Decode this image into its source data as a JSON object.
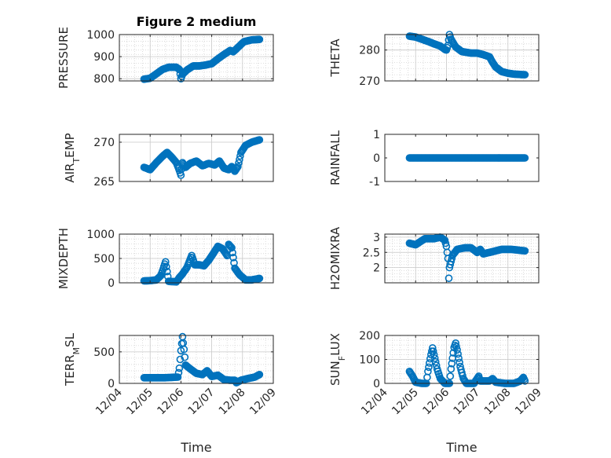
{
  "chart_data": [
    {
      "type": "scatter",
      "title": "Figure 2 medium",
      "ylabel": "PRESSURE",
      "xlabel": "",
      "ylim": [
        790,
        1000
      ],
      "yticks": [
        800,
        900,
        1000
      ],
      "ytick_labels": [
        "800",
        "900",
        "1000"
      ],
      "xlim": [
        "2012-04-00",
        "2012-09-00"
      ],
      "grid": true,
      "minor_grid": true,
      "color": "#0072BD",
      "anchors": [
        [
          4.8,
          798
        ],
        [
          5.0,
          802
        ],
        [
          5.2,
          822
        ],
        [
          5.4,
          842
        ],
        [
          5.6,
          852
        ],
        [
          5.85,
          852
        ],
        [
          5.95,
          842
        ],
        [
          6.0,
          800
        ],
        [
          6.05,
          820
        ],
        [
          6.2,
          840
        ],
        [
          6.4,
          858
        ],
        [
          6.6,
          858
        ],
        [
          6.8,
          862
        ],
        [
          7.0,
          868
        ],
        [
          7.2,
          890
        ],
        [
          7.4,
          910
        ],
        [
          7.6,
          928
        ],
        [
          7.7,
          922
        ],
        [
          7.8,
          935
        ],
        [
          7.95,
          955
        ],
        [
          8.05,
          968
        ],
        [
          8.3,
          976
        ],
        [
          8.55,
          978
        ]
      ]
    },
    {
      "type": "scatter",
      "title": "",
      "ylabel": "THETA",
      "xlabel": "",
      "ylim": [
        270,
        285
      ],
      "yticks": [
        270,
        280
      ],
      "ytick_labels": [
        "270",
        "280"
      ],
      "xlim": [
        "2012-04-00",
        "2012-09-00"
      ],
      "grid": true,
      "minor_grid": true,
      "color": "#0072BD",
      "anchors": [
        [
          4.8,
          284.5
        ],
        [
          5.0,
          284.2
        ],
        [
          5.2,
          283.5
        ],
        [
          5.4,
          282.8
        ],
        [
          5.6,
          282.0
        ],
        [
          5.8,
          281.3
        ],
        [
          5.95,
          280.2
        ],
        [
          6.0,
          280.0
        ],
        [
          6.05,
          281.5
        ],
        [
          6.1,
          285.0
        ],
        [
          6.15,
          283.5
        ],
        [
          6.3,
          281.0
        ],
        [
          6.5,
          279.5
        ],
        [
          6.8,
          279.0
        ],
        [
          7.0,
          279.0
        ],
        [
          7.2,
          278.5
        ],
        [
          7.4,
          277.8
        ],
        [
          7.5,
          276.0
        ],
        [
          7.6,
          274.5
        ],
        [
          7.8,
          273.0
        ],
        [
          8.0,
          272.5
        ],
        [
          8.2,
          272.2
        ],
        [
          8.55,
          272.0
        ]
      ]
    },
    {
      "type": "scatter",
      "title": "",
      "ylabel": "AIR_TEMP",
      "xlabel": "",
      "ylim": [
        265,
        271
      ],
      "yticks": [
        265,
        270
      ],
      "ytick_labels": [
        "265",
        "270"
      ],
      "xlim": [
        "2012-04-00",
        "2012-09-00"
      ],
      "grid": true,
      "minor_grid": false,
      "color": "#0072BD",
      "anchors": [
        [
          4.8,
          266.8
        ],
        [
          5.0,
          266.5
        ],
        [
          5.2,
          267.4
        ],
        [
          5.4,
          268.2
        ],
        [
          5.55,
          268.7
        ],
        [
          5.7,
          268.1
        ],
        [
          5.85,
          267.4
        ],
        [
          5.95,
          266.4
        ],
        [
          6.0,
          265.8
        ],
        [
          6.05,
          267.4
        ],
        [
          6.15,
          266.8
        ],
        [
          6.3,
          267.3
        ],
        [
          6.5,
          267.6
        ],
        [
          6.7,
          267.0
        ],
        [
          6.9,
          267.3
        ],
        [
          7.1,
          267.1
        ],
        [
          7.25,
          267.6
        ],
        [
          7.4,
          266.7
        ],
        [
          7.55,
          266.5
        ],
        [
          7.65,
          266.9
        ],
        [
          7.75,
          266.3
        ],
        [
          7.85,
          266.9
        ],
        [
          7.95,
          268.7
        ],
        [
          8.1,
          269.6
        ],
        [
          8.3,
          270.0
        ],
        [
          8.55,
          270.3
        ]
      ]
    },
    {
      "type": "scatter",
      "title": "",
      "ylabel": "RAINFALL",
      "xlabel": "",
      "ylim": [
        -1,
        1
      ],
      "yticks": [
        -1,
        0,
        1
      ],
      "ytick_labels": [
        "-1",
        "0",
        "1"
      ],
      "xlim": [
        "2012-04-00",
        "2012-09-00"
      ],
      "grid": false,
      "minor_grid": false,
      "color": "#0072BD",
      "anchors": [
        [
          4.8,
          0
        ],
        [
          8.55,
          0
        ]
      ]
    },
    {
      "type": "scatter",
      "title": "",
      "ylabel": "MIXDEPTH",
      "xlabel": "",
      "ylim": [
        0,
        1000
      ],
      "yticks": [
        0,
        500,
        1000
      ],
      "ytick_labels": [
        "0",
        "500",
        "1000"
      ],
      "xlim": [
        "2012-04-00",
        "2012-09-00"
      ],
      "grid": true,
      "minor_grid": true,
      "color": "#0072BD",
      "anchors": [
        [
          4.8,
          40
        ],
        [
          5.0,
          45
        ],
        [
          5.2,
          60
        ],
        [
          5.35,
          150
        ],
        [
          5.5,
          430
        ],
        [
          5.6,
          30
        ],
        [
          5.85,
          20
        ],
        [
          5.95,
          110
        ],
        [
          6.05,
          180
        ],
        [
          6.2,
          320
        ],
        [
          6.35,
          560
        ],
        [
          6.45,
          370
        ],
        [
          6.6,
          370
        ],
        [
          6.75,
          350
        ],
        [
          6.9,
          460
        ],
        [
          7.05,
          600
        ],
        [
          7.2,
          750
        ],
        [
          7.35,
          700
        ],
        [
          7.5,
          560
        ],
        [
          7.55,
          790
        ],
        [
          7.65,
          720
        ],
        [
          7.7,
          520
        ],
        [
          7.75,
          300
        ],
        [
          7.9,
          170
        ],
        [
          8.1,
          60
        ],
        [
          8.3,
          60
        ],
        [
          8.55,
          90
        ]
      ]
    },
    {
      "type": "scatter",
      "title": "",
      "ylabel": "H2OMIXRA",
      "xlabel": "",
      "ylim": [
        1.5,
        3.1
      ],
      "yticks": [
        2,
        2.5,
        3
      ],
      "ytick_labels": [
        "2",
        "2.5",
        "3"
      ],
      "xlim": [
        "2012-04-00",
        "2012-09-00"
      ],
      "grid": true,
      "minor_grid": true,
      "color": "#0072BD",
      "anchors": [
        [
          4.8,
          2.8
        ],
        [
          5.0,
          2.75
        ],
        [
          5.15,
          2.85
        ],
        [
          5.3,
          2.95
        ],
        [
          5.6,
          2.95
        ],
        [
          5.8,
          3.0
        ],
        [
          5.95,
          2.9
        ],
        [
          6.0,
          2.7
        ],
        [
          6.05,
          2.3
        ],
        [
          6.08,
          1.65
        ],
        [
          6.1,
          2.0
        ],
        [
          6.2,
          2.4
        ],
        [
          6.35,
          2.6
        ],
        [
          6.6,
          2.65
        ],
        [
          6.8,
          2.65
        ],
        [
          7.0,
          2.5
        ],
        [
          7.1,
          2.6
        ],
        [
          7.2,
          2.45
        ],
        [
          7.4,
          2.5
        ],
        [
          7.6,
          2.55
        ],
        [
          7.8,
          2.6
        ],
        [
          8.1,
          2.6
        ],
        [
          8.55,
          2.55
        ]
      ]
    },
    {
      "type": "scatter",
      "title": "",
      "ylabel": "TERR_MSL",
      "xlabel": "Time",
      "ylim": [
        0,
        760
      ],
      "yticks": [
        0,
        500
      ],
      "ytick_labels": [
        "0",
        "500"
      ],
      "xlim": [
        "2012-04-00",
        "2012-09-00"
      ],
      "grid": true,
      "minor_grid": true,
      "color": "#0072BD",
      "anchors": [
        [
          4.8,
          90
        ],
        [
          5.5,
          90
        ],
        [
          5.9,
          100
        ],
        [
          5.95,
          240
        ],
        [
          6.0,
          520
        ],
        [
          6.05,
          740
        ],
        [
          6.1,
          540
        ],
        [
          6.15,
          290
        ],
        [
          6.3,
          230
        ],
        [
          6.5,
          160
        ],
        [
          6.7,
          140
        ],
        [
          6.85,
          200
        ],
        [
          7.0,
          110
        ],
        [
          7.2,
          130
        ],
        [
          7.4,
          60
        ],
        [
          7.6,
          50
        ],
        [
          7.75,
          50
        ],
        [
          7.8,
          10
        ],
        [
          7.95,
          50
        ],
        [
          8.2,
          80
        ],
        [
          8.4,
          100
        ],
        [
          8.55,
          140
        ]
      ]
    },
    {
      "type": "scatter",
      "title": "",
      "ylabel": "SUN_FLUX",
      "xlabel": "Time",
      "ylim": [
        0,
        200
      ],
      "yticks": [
        0,
        100,
        200
      ],
      "ytick_labels": [
        "0",
        "100",
        "200"
      ],
      "xlim": [
        "2012-04-00",
        "2012-09-00"
      ],
      "grid": true,
      "minor_grid": true,
      "color": "#0072BD",
      "anchors": [
        [
          4.8,
          50
        ],
        [
          4.9,
          30
        ],
        [
          5.0,
          5
        ],
        [
          5.2,
          0
        ],
        [
          5.35,
          0
        ],
        [
          5.4,
          50
        ],
        [
          5.5,
          120
        ],
        [
          5.55,
          148
        ],
        [
          5.6,
          120
        ],
        [
          5.7,
          60
        ],
        [
          5.8,
          20
        ],
        [
          5.95,
          0
        ],
        [
          6.1,
          0
        ],
        [
          6.15,
          60
        ],
        [
          6.25,
          150
        ],
        [
          6.3,
          168
        ],
        [
          6.35,
          140
        ],
        [
          6.45,
          70
        ],
        [
          6.55,
          20
        ],
        [
          6.65,
          0
        ],
        [
          6.9,
          0
        ],
        [
          7.05,
          30
        ],
        [
          7.1,
          10
        ],
        [
          7.4,
          10
        ],
        [
          7.5,
          20
        ],
        [
          7.6,
          5
        ],
        [
          7.9,
          0
        ],
        [
          8.2,
          0
        ],
        [
          8.4,
          10
        ],
        [
          8.5,
          25
        ],
        [
          8.55,
          10
        ]
      ]
    }
  ],
  "x_tick_labels": [
    "12/04",
    "12/05",
    "12/06",
    "12/07",
    "12/08",
    "12/09"
  ]
}
